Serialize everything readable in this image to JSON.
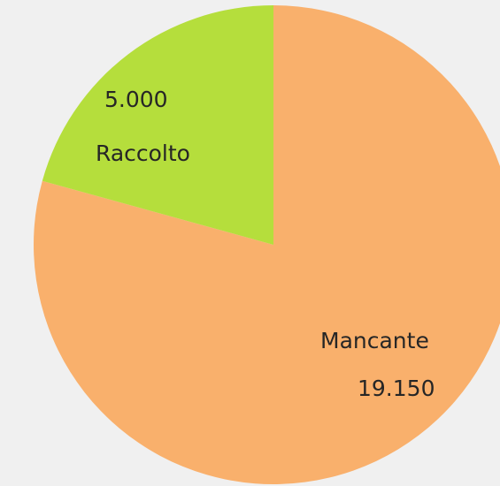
{
  "chart_data": {
    "type": "pie",
    "title": "",
    "start_angle": "12 o'clock",
    "direction": "clockwise",
    "slices": [
      {
        "label": "Mancante",
        "value": 19150,
        "value_label": "19.150",
        "color": "#f9b06c"
      },
      {
        "label": "Raccolto",
        "value": 5000,
        "value_label": "5.000",
        "color": "#b5de3c"
      }
    ],
    "legend": "none"
  }
}
